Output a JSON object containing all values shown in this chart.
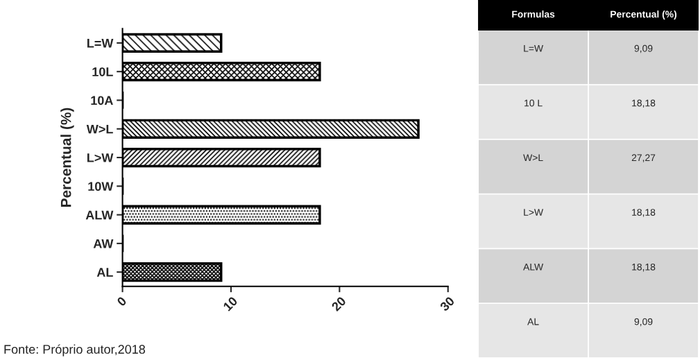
{
  "chart_data": [
    {
      "type": "bar",
      "orientation": "horizontal",
      "ylabel": "Percentual (%)",
      "categories": [
        "L=W",
        "10L",
        "10A",
        "W>L",
        "L>W",
        "10W",
        "ALW",
        "AW",
        "AL"
      ],
      "values": [
        9.09,
        18.18,
        0,
        27.27,
        18.18,
        0,
        18.18,
        0,
        9.09
      ],
      "xlim": [
        0,
        30
      ],
      "xticks": [
        0,
        10,
        20,
        30
      ],
      "grid": false,
      "annotations": [
        "Fonte: Próprio autor,2018"
      ]
    },
    {
      "type": "other",
      "annotations": [
        "Formulas",
        "Percentual (%)"
      ],
      "categories": [
        "L=W",
        "10 L",
        "W>L",
        "L>W",
        "ALW",
        "AL"
      ],
      "value_labels": [
        "9,09",
        "18,18",
        "27,27",
        "18,18",
        "18,18",
        "9,09"
      ]
    }
  ]
}
